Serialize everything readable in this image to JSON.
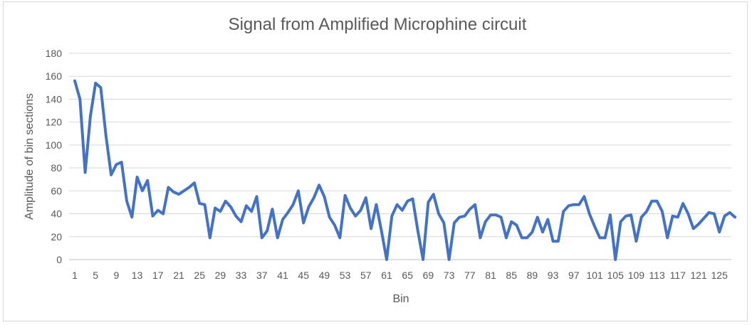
{
  "chart_data": {
    "type": "line",
    "title": "Signal from Amplified Microphine circuit",
    "xlabel": "Bin",
    "ylabel": "Amplitude of bin sections",
    "ylim": [
      0,
      180
    ],
    "y_ticks": [
      "0",
      "20",
      "40",
      "60",
      "80",
      "100",
      "120",
      "140",
      "160",
      "180"
    ],
    "grid": "horizontal",
    "x_tick_labels": [
      "1",
      "5",
      "9",
      "13",
      "17",
      "21",
      "25",
      "29",
      "33",
      "37",
      "41",
      "45",
      "49",
      "53",
      "57",
      "61",
      "65",
      "69",
      "73",
      "77",
      "81",
      "85",
      "89",
      "93",
      "97",
      "101",
      "105",
      "109",
      "113",
      "117",
      "121",
      "125"
    ],
    "line_color": "#4472C4",
    "series": [
      {
        "x": [
          1,
          2,
          3,
          4,
          5,
          6,
          7,
          8,
          9,
          10,
          11,
          12,
          13,
          14,
          15,
          16,
          17,
          18,
          19,
          20,
          21,
          22,
          23,
          24,
          25,
          26,
          27,
          28,
          29,
          30,
          31,
          32,
          33,
          34,
          35,
          36,
          37,
          38,
          39,
          40,
          41,
          42,
          43,
          44,
          45,
          46,
          47,
          48,
          49,
          50,
          51,
          52,
          53,
          54,
          55,
          56,
          57,
          58,
          59,
          60,
          61,
          62,
          63,
          64,
          65,
          66,
          67,
          68,
          69,
          70,
          71,
          72,
          73,
          74,
          75,
          76,
          77,
          78,
          79,
          80,
          81,
          82,
          83,
          84,
          85,
          86,
          87,
          88,
          89,
          90,
          91,
          92,
          93,
          94,
          95,
          96,
          97,
          98,
          99,
          100,
          101,
          102,
          103,
          104,
          105,
          106,
          107,
          108,
          109,
          110,
          111,
          112,
          113,
          114,
          115,
          116,
          117,
          118,
          119,
          120,
          121,
          122,
          123,
          124,
          125,
          126,
          127,
          128
        ],
        "values": [
          156,
          140,
          76,
          125,
          154,
          150,
          108,
          74,
          83,
          85,
          51,
          37,
          72,
          60,
          69,
          38,
          43,
          40,
          63,
          59,
          57,
          60,
          63,
          67,
          49,
          48,
          19,
          45,
          42,
          51,
          46,
          38,
          33,
          47,
          42,
          55,
          19,
          25,
          44,
          19,
          35,
          41,
          48,
          60,
          32,
          46,
          54,
          65,
          55,
          37,
          30,
          19,
          56,
          45,
          38,
          43,
          54,
          27,
          48,
          25,
          0,
          38,
          48,
          43,
          51,
          53,
          25,
          0,
          50,
          57,
          40,
          32,
          0,
          32,
          37,
          38,
          44,
          48,
          19,
          33,
          39,
          39,
          37,
          19,
          33,
          30,
          19,
          19,
          24,
          37,
          24,
          35,
          16,
          16,
          42,
          47,
          48,
          48,
          55,
          40,
          29,
          19,
          19,
          39,
          0,
          33,
          38,
          39,
          16,
          37,
          42,
          51,
          51,
          42,
          19,
          38,
          37,
          49,
          40,
          27,
          31,
          36,
          41,
          40,
          24,
          38,
          41,
          37
        ]
      }
    ]
  }
}
